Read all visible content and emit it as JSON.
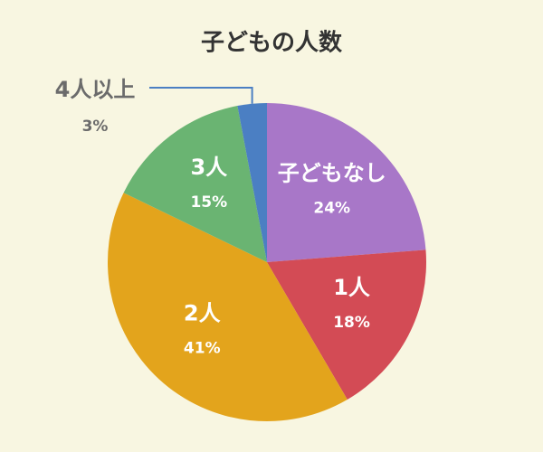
{
  "chart_data": {
    "type": "pie",
    "title": "子どもの人数",
    "categories": [
      "子どもなし",
      "1人",
      "2人",
      "3人",
      "4人以上"
    ],
    "values": [
      24,
      18,
      41,
      15,
      3
    ],
    "value_labels": [
      "24%",
      "18%",
      "41%",
      "15%",
      "3%"
    ],
    "colors": [
      "#a877c8",
      "#d34b55",
      "#e3a41c",
      "#6ab472",
      "#4b7fc3"
    ]
  }
}
